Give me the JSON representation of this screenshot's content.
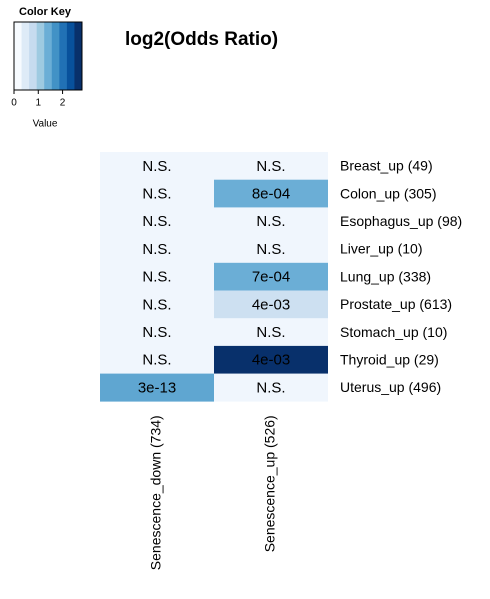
{
  "chart_data": {
    "type": "heatmap",
    "title": "log2(Odds Ratio)",
    "color_key": {
      "title": "Color Key",
      "xlabel": "Value",
      "xlim": [
        0,
        2.8
      ],
      "xticks": [
        0,
        1,
        2
      ]
    },
    "colors": [
      "#f7fbff",
      "#deebf7",
      "#c6dbef",
      "#9ecae1",
      "#6baed6",
      "#4292c6",
      "#2171b5",
      "#08519c",
      "#08306b"
    ],
    "columns": [
      "Senescence_down (734)",
      "Senescence_up (526)"
    ],
    "rows": [
      "Breast_up (49)",
      "Colon_up (305)",
      "Esophagus_up (98)",
      "Liver_up (10)",
      "Lung_up (338)",
      "Prostate_up (613)",
      "Stomach_up (10)",
      "Thyroid_up (29)",
      "Uterus_up (496)"
    ],
    "values": [
      [
        0.1,
        0.1
      ],
      [
        0.1,
        1.4
      ],
      [
        0.1,
        0.1
      ],
      [
        0.1,
        0.1
      ],
      [
        0.1,
        1.4
      ],
      [
        0.1,
        0.6
      ],
      [
        0.1,
        0.1
      ],
      [
        0.1,
        2.8
      ],
      [
        1.5,
        0.1
      ]
    ],
    "cell_labels": [
      [
        "N.S.",
        "N.S."
      ],
      [
        "N.S.",
        "8e-04"
      ],
      [
        "N.S.",
        "N.S."
      ],
      [
        "N.S.",
        "N.S."
      ],
      [
        "N.S.",
        "7e-04"
      ],
      [
        "N.S.",
        "4e-03"
      ],
      [
        "N.S.",
        "N.S."
      ],
      [
        "N.S.",
        "4e-03"
      ],
      [
        "3e-13",
        "N.S."
      ]
    ]
  }
}
